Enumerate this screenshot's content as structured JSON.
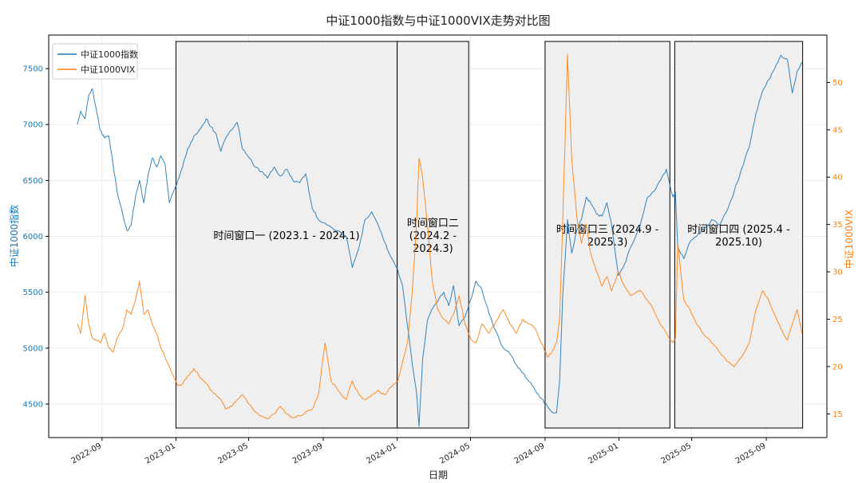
{
  "chart_data": {
    "type": "line",
    "title": "中证1000指数与中证1000VIX走势对比图",
    "xlabel": "日期",
    "y_left_label": "中证1000指数",
    "y_right_label": "中证1000VIX",
    "x_ticks": [
      "2022-09",
      "2023-01",
      "2023-05",
      "2023-09",
      "2024-01",
      "2024-05",
      "2024-09",
      "2025-01",
      "2025-05",
      "2025-09"
    ],
    "y_left_ticks": [
      4500,
      5000,
      5500,
      6000,
      6500,
      7000,
      7500
    ],
    "y_right_ticks": [
      15,
      20,
      25,
      30,
      35,
      40,
      45,
      50
    ],
    "y_left_range": [
      4200,
      7800
    ],
    "y_right_range": [
      12.5,
      55
    ],
    "x_range": [
      "2022-06-05",
      "2025-12-10"
    ],
    "grid": true,
    "legend": "top-left",
    "colors": {
      "index": "#1f77b4",
      "vix": "#ff7f0e",
      "window_fill": "#efefef",
      "window_edge": "#000000"
    },
    "series": [
      {
        "name": "中证1000指数",
        "axis": "left",
        "points": [
          [
            "2022-07-22",
            7000
          ],
          [
            "2022-07-28",
            7120
          ],
          [
            "2022-08-04",
            7050
          ],
          [
            "2022-08-10",
            7260
          ],
          [
            "2022-08-16",
            7320
          ],
          [
            "2022-08-22",
            7150
          ],
          [
            "2022-08-29",
            6950
          ],
          [
            "2022-09-05",
            6880
          ],
          [
            "2022-09-12",
            6900
          ],
          [
            "2022-09-19",
            6650
          ],
          [
            "2022-09-26",
            6400
          ],
          [
            "2022-10-05",
            6200
          ],
          [
            "2022-10-12",
            6050
          ],
          [
            "2022-10-19",
            6100
          ],
          [
            "2022-10-26",
            6350
          ],
          [
            "2022-11-02",
            6500
          ],
          [
            "2022-11-09",
            6300
          ],
          [
            "2022-11-16",
            6550
          ],
          [
            "2022-11-23",
            6700
          ],
          [
            "2022-11-30",
            6620
          ],
          [
            "2022-12-07",
            6720
          ],
          [
            "2022-12-14",
            6650
          ],
          [
            "2022-12-21",
            6300
          ],
          [
            "2022-12-28",
            6400
          ],
          [
            "2023-01-04",
            6500
          ],
          [
            "2023-01-12",
            6620
          ],
          [
            "2023-01-20",
            6780
          ],
          [
            "2023-01-31",
            6900
          ],
          [
            "2023-02-10",
            6960
          ],
          [
            "2023-02-20",
            7050
          ],
          [
            "2023-02-28",
            6980
          ],
          [
            "2023-03-08",
            6920
          ],
          [
            "2023-03-16",
            6760
          ],
          [
            "2023-03-24",
            6880
          ],
          [
            "2023-04-03",
            6950
          ],
          [
            "2023-04-12",
            7020
          ],
          [
            "2023-04-21",
            6780
          ],
          [
            "2023-05-02",
            6700
          ],
          [
            "2023-05-12",
            6620
          ],
          [
            "2023-05-22",
            6580
          ],
          [
            "2023-06-01",
            6520
          ],
          [
            "2023-06-12",
            6620
          ],
          [
            "2023-06-22",
            6540
          ],
          [
            "2023-07-03",
            6600
          ],
          [
            "2023-07-13",
            6500
          ],
          [
            "2023-07-24",
            6480
          ],
          [
            "2023-08-03",
            6560
          ],
          [
            "2023-08-14",
            6250
          ],
          [
            "2023-08-24",
            6150
          ],
          [
            "2023-09-04",
            6120
          ],
          [
            "2023-09-14",
            6080
          ],
          [
            "2023-09-25",
            6050
          ],
          [
            "2023-10-09",
            6000
          ],
          [
            "2023-10-19",
            5720
          ],
          [
            "2023-10-30",
            5900
          ],
          [
            "2023-11-09",
            6150
          ],
          [
            "2023-11-20",
            6220
          ],
          [
            "2023-12-01",
            6100
          ],
          [
            "2023-12-11",
            5950
          ],
          [
            "2023-12-21",
            5820
          ],
          [
            "2024-01-02",
            5700
          ],
          [
            "2024-01-10",
            5550
          ],
          [
            "2024-01-18",
            5200
          ],
          [
            "2024-01-26",
            4850
          ],
          [
            "2024-02-02",
            4600
          ],
          [
            "2024-02-06",
            4300
          ],
          [
            "2024-02-12",
            4900
          ],
          [
            "2024-02-20",
            5250
          ],
          [
            "2024-02-28",
            5350
          ],
          [
            "2024-03-08",
            5420
          ],
          [
            "2024-03-18",
            5500
          ],
          [
            "2024-03-26",
            5380
          ],
          [
            "2024-04-03",
            5560
          ],
          [
            "2024-04-12",
            5200
          ],
          [
            "2024-04-22",
            5280
          ],
          [
            "2024-05-01",
            5430
          ],
          [
            "2024-05-10",
            5600
          ],
          [
            "2024-05-20",
            5520
          ],
          [
            "2024-06-01",
            5300
          ],
          [
            "2024-06-12",
            5150
          ],
          [
            "2024-06-24",
            5000
          ],
          [
            "2024-07-05",
            4950
          ],
          [
            "2024-07-16",
            4850
          ],
          [
            "2024-07-26",
            4780
          ],
          [
            "2024-08-06",
            4700
          ],
          [
            "2024-08-16",
            4620
          ],
          [
            "2024-08-26",
            4550
          ],
          [
            "2024-09-05",
            4480
          ],
          [
            "2024-09-12",
            4430
          ],
          [
            "2024-09-20",
            4420
          ],
          [
            "2024-09-25",
            4700
          ],
          [
            "2024-09-30",
            5450
          ],
          [
            "2024-10-08",
            6150
          ],
          [
            "2024-10-15",
            5850
          ],
          [
            "2024-10-23",
            6050
          ],
          [
            "2024-10-31",
            6150
          ],
          [
            "2024-11-08",
            6350
          ],
          [
            "2024-11-15",
            6300
          ],
          [
            "2024-11-25",
            6200
          ],
          [
            "2024-12-04",
            6180
          ],
          [
            "2024-12-12",
            6300
          ],
          [
            "2024-12-20",
            6100
          ],
          [
            "2024-12-31",
            5650
          ],
          [
            "2025-01-10",
            5750
          ],
          [
            "2025-01-20",
            5900
          ],
          [
            "2025-02-05",
            6100
          ],
          [
            "2025-02-17",
            6350
          ],
          [
            "2025-02-27",
            6400
          ],
          [
            "2025-03-10",
            6500
          ],
          [
            "2025-03-20",
            6600
          ],
          [
            "2025-03-31",
            6350
          ],
          [
            "2025-04-04",
            6400
          ],
          [
            "2025-04-08",
            5900
          ],
          [
            "2025-04-18",
            5800
          ],
          [
            "2025-04-28",
            5950
          ],
          [
            "2025-05-09",
            6000
          ],
          [
            "2025-05-20",
            6050
          ],
          [
            "2025-06-03",
            6150
          ],
          [
            "2025-06-16",
            6100
          ],
          [
            "2025-06-30",
            6250
          ],
          [
            "2025-07-10",
            6400
          ],
          [
            "2025-07-22",
            6600
          ],
          [
            "2025-08-04",
            6800
          ],
          [
            "2025-08-15",
            7100
          ],
          [
            "2025-08-26",
            7300
          ],
          [
            "2025-09-05",
            7400
          ],
          [
            "2025-09-15",
            7500
          ],
          [
            "2025-09-25",
            7620
          ],
          [
            "2025-10-06",
            7580
          ],
          [
            "2025-10-14",
            7280
          ],
          [
            "2025-10-22",
            7480
          ],
          [
            "2025-10-30",
            7560
          ]
        ]
      },
      {
        "name": "中证1000VIX",
        "axis": "right",
        "points": [
          [
            "2022-07-22",
            24.5
          ],
          [
            "2022-07-28",
            23.5
          ],
          [
            "2022-08-04",
            27.5
          ],
          [
            "2022-08-10",
            24.5
          ],
          [
            "2022-08-16",
            23.0
          ],
          [
            "2022-08-22",
            22.8
          ],
          [
            "2022-08-29",
            22.5
          ],
          [
            "2022-09-05",
            23.5
          ],
          [
            "2022-09-12",
            22.0
          ],
          [
            "2022-09-19",
            21.5
          ],
          [
            "2022-09-26",
            23.0
          ],
          [
            "2022-10-05",
            24.0
          ],
          [
            "2022-10-12",
            26.0
          ],
          [
            "2022-10-19",
            25.5
          ],
          [
            "2022-10-26",
            27.0
          ],
          [
            "2022-11-02",
            29.0
          ],
          [
            "2022-11-09",
            25.5
          ],
          [
            "2022-11-16",
            26.0
          ],
          [
            "2022-11-23",
            24.5
          ],
          [
            "2022-11-30",
            23.5
          ],
          [
            "2022-12-07",
            22.0
          ],
          [
            "2022-12-14",
            21.0
          ],
          [
            "2022-12-21",
            20.0
          ],
          [
            "2022-12-28",
            19.0
          ],
          [
            "2023-01-04",
            18.0
          ],
          [
            "2023-01-12",
            18.2
          ],
          [
            "2023-01-20",
            19.0
          ],
          [
            "2023-01-31",
            19.8
          ],
          [
            "2023-02-10",
            18.8
          ],
          [
            "2023-02-20",
            18.2
          ],
          [
            "2023-02-28",
            17.5
          ],
          [
            "2023-03-08",
            17.0
          ],
          [
            "2023-03-16",
            16.5
          ],
          [
            "2023-03-24",
            15.5
          ],
          [
            "2023-04-03",
            15.8
          ],
          [
            "2023-04-12",
            16.5
          ],
          [
            "2023-04-21",
            17.0
          ],
          [
            "2023-05-02",
            16.0
          ],
          [
            "2023-05-12",
            15.2
          ],
          [
            "2023-05-22",
            14.8
          ],
          [
            "2023-06-01",
            14.5
          ],
          [
            "2023-06-12",
            15.0
          ],
          [
            "2023-06-22",
            15.8
          ],
          [
            "2023-07-03",
            15.0
          ],
          [
            "2023-07-13",
            14.6
          ],
          [
            "2023-07-24",
            14.8
          ],
          [
            "2023-08-03",
            15.2
          ],
          [
            "2023-08-14",
            15.5
          ],
          [
            "2023-08-24",
            17.0
          ],
          [
            "2023-09-04",
            22.5
          ],
          [
            "2023-09-14",
            18.5
          ],
          [
            "2023-09-25",
            17.5
          ],
          [
            "2023-10-09",
            16.5
          ],
          [
            "2023-10-19",
            18.5
          ],
          [
            "2023-10-30",
            17.0
          ],
          [
            "2023-11-09",
            16.5
          ],
          [
            "2023-11-20",
            17.0
          ],
          [
            "2023-12-01",
            17.5
          ],
          [
            "2023-12-11",
            17.0
          ],
          [
            "2023-12-21",
            17.8
          ],
          [
            "2024-01-02",
            18.5
          ],
          [
            "2024-01-10",
            20.5
          ],
          [
            "2024-01-18",
            22.5
          ],
          [
            "2024-01-26",
            28.0
          ],
          [
            "2024-02-02",
            35.0
          ],
          [
            "2024-02-06",
            42.0
          ],
          [
            "2024-02-12",
            40.0
          ],
          [
            "2024-02-20",
            35.0
          ],
          [
            "2024-02-28",
            29.0
          ],
          [
            "2024-03-08",
            26.0
          ],
          [
            "2024-03-18",
            25.0
          ],
          [
            "2024-03-26",
            24.5
          ],
          [
            "2024-04-03",
            25.5
          ],
          [
            "2024-04-12",
            27.5
          ],
          [
            "2024-04-22",
            24.5
          ],
          [
            "2024-05-01",
            23.0
          ],
          [
            "2024-05-10",
            22.5
          ],
          [
            "2024-05-20",
            24.5
          ],
          [
            "2024-06-01",
            23.5
          ],
          [
            "2024-06-12",
            24.8
          ],
          [
            "2024-06-24",
            26.0
          ],
          [
            "2024-07-05",
            24.5
          ],
          [
            "2024-07-16",
            23.5
          ],
          [
            "2024-07-26",
            25.0
          ],
          [
            "2024-08-06",
            24.5
          ],
          [
            "2024-08-16",
            24.0
          ],
          [
            "2024-08-26",
            22.5
          ],
          [
            "2024-09-05",
            21.0
          ],
          [
            "2024-09-12",
            21.5
          ],
          [
            "2024-09-20",
            22.5
          ],
          [
            "2024-09-25",
            25.0
          ],
          [
            "2024-09-30",
            35.0
          ],
          [
            "2024-10-08",
            53.0
          ],
          [
            "2024-10-15",
            42.0
          ],
          [
            "2024-10-23",
            36.0
          ],
          [
            "2024-10-31",
            33.0
          ],
          [
            "2024-11-08",
            35.0
          ],
          [
            "2024-11-15",
            32.0
          ],
          [
            "2024-11-25",
            30.0
          ],
          [
            "2024-12-04",
            28.5
          ],
          [
            "2024-12-12",
            29.5
          ],
          [
            "2024-12-20",
            28.0
          ],
          [
            "2024-12-31",
            30.0
          ],
          [
            "2025-01-10",
            28.5
          ],
          [
            "2025-01-20",
            27.5
          ],
          [
            "2025-02-05",
            28.0
          ],
          [
            "2025-02-17",
            27.0
          ],
          [
            "2025-02-27",
            26.0
          ],
          [
            "2025-03-10",
            24.5
          ],
          [
            "2025-03-20",
            23.5
          ],
          [
            "2025-03-31",
            22.5
          ],
          [
            "2025-04-04",
            23.0
          ],
          [
            "2025-04-08",
            33.0
          ],
          [
            "2025-04-18",
            27.0
          ],
          [
            "2025-04-28",
            26.0
          ],
          [
            "2025-05-09",
            24.5
          ],
          [
            "2025-05-20",
            23.5
          ],
          [
            "2025-06-03",
            22.5
          ],
          [
            "2025-06-16",
            21.5
          ],
          [
            "2025-06-30",
            20.5
          ],
          [
            "2025-07-10",
            20.0
          ],
          [
            "2025-07-22",
            21.0
          ],
          [
            "2025-08-04",
            22.5
          ],
          [
            "2025-08-15",
            26.0
          ],
          [
            "2025-08-26",
            28.0
          ],
          [
            "2025-09-05",
            27.0
          ],
          [
            "2025-09-15",
            25.5
          ],
          [
            "2025-09-25",
            24.0
          ],
          [
            "2025-10-06",
            22.8
          ],
          [
            "2025-10-14",
            24.5
          ],
          [
            "2025-10-22",
            26.0
          ],
          [
            "2025-10-30",
            23.5
          ]
        ]
      }
    ],
    "windows": [
      {
        "label": "时间窗口一 (2023.1 - 2024.1)",
        "start": "2023-01-01",
        "end": "2024-01-01",
        "label_lines": [
          "时间窗口一 (2023.1 - 2024.1)"
        ]
      },
      {
        "label": "时间窗口二 (2024.2 - 2024.3)",
        "start": "2024-01-01",
        "end": "2024-04-28",
        "label_lines": [
          "时间窗口二",
          "(2024.2 -",
          "2024.3)"
        ]
      },
      {
        "label": "时间窗口三 (2024.9 - 2025.3)",
        "start": "2024-09-01",
        "end": "2025-03-26",
        "label_lines": [
          "时间窗口三 (2024.9 -",
          "2025.3)"
        ]
      },
      {
        "label": "时间窗口四 (2025.4 - 2025.10)",
        "start": "2025-04-03",
        "end": "2025-10-31",
        "label_lines": [
          "时间窗口四 (2025.4 -",
          "2025.10)"
        ]
      }
    ]
  }
}
